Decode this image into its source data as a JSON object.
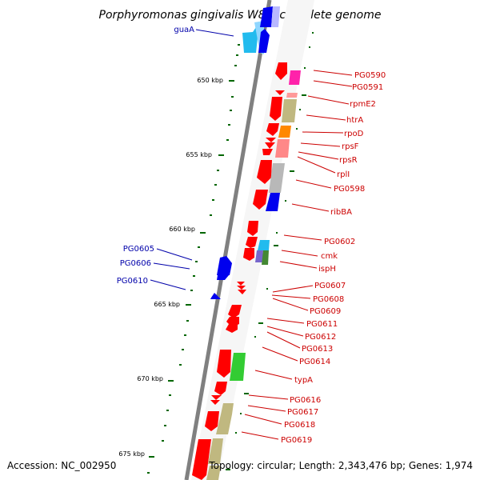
{
  "title": "Porphyromonas gingivalis W83, complete genome",
  "accession": "Accession: NC_002950",
  "summary": "Topology: circular; Length: 2,343,476 bp; Genes: 1,974",
  "scale_labels": [
    "650 kbp",
    "655 kbp",
    "660 kbp",
    "665 kbp",
    "670 kbp",
    "675 kbp"
  ],
  "genes_right": [
    "PG0590",
    "PG0591",
    "rpmE2",
    "htrA",
    "rpoD",
    "rpsF",
    "rpsR",
    "rplI",
    "PG0598",
    "ribBA",
    "PG0602",
    "cmk",
    "ispH",
    "PG0607",
    "PG0608",
    "PG0609",
    "PG0611",
    "PG0612",
    "PG0613",
    "PG0614",
    "typA",
    "PG0616",
    "PG0617",
    "PG0618",
    "PG0619"
  ],
  "genes_left": [
    "guaA",
    "PG0605",
    "PG0606",
    "PG0610"
  ],
  "colors": {
    "forward_strand": "#ff0000",
    "reverse_strand": "#0000ff",
    "label_forward": "#cc0000",
    "label_reverse": "#0000aa",
    "backbone": "#808080",
    "scale_ticks": "#006600"
  }
}
